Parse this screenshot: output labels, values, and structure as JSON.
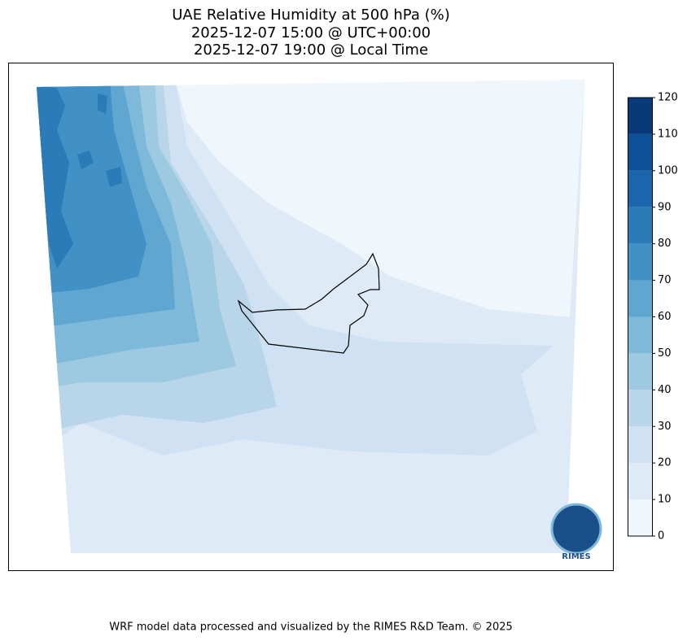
{
  "title": [
    "UAE Relative Humidity at 500 hPa (%)",
    "2025-12-07 15:00 @ UTC+00:00",
    "2025-12-07 19:00 @ Local Time"
  ],
  "colorbar": {
    "lim": [
      0,
      120
    ],
    "ticks": [
      0,
      10,
      20,
      30,
      40,
      50,
      60,
      70,
      80,
      90,
      100,
      110,
      120
    ],
    "colors": [
      "#eff6fc",
      "#deebf7",
      "#cfe1f2",
      "#b8d5ea",
      "#9ecae1",
      "#7fb9da",
      "#5fa6d1",
      "#4190c6",
      "#2c7bb9",
      "#1b65ac",
      "#0c5198",
      "#083a7a"
    ]
  },
  "logo": "RIMES",
  "footer": "WRF model data processed and visualized by the RIMES R&D Team. © 2025"
}
